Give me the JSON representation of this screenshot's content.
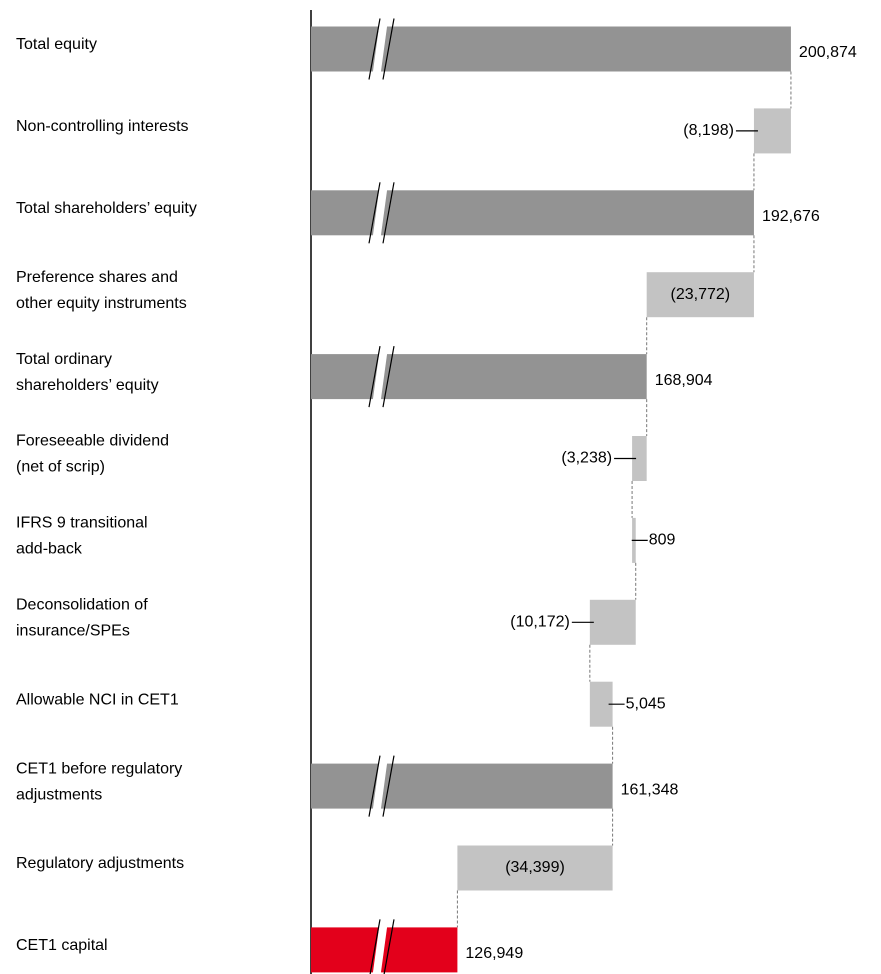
{
  "chart_data": {
    "type": "waterfall",
    "categories": [
      [
        "Total equity"
      ],
      [
        "Non-controlling interests"
      ],
      [
        "Total shareholders’ equity"
      ],
      [
        "Preference shares and",
        "other equity instruments"
      ],
      [
        "Total ordinary",
        "shareholders’ equity"
      ],
      [
        "Foreseeable dividend",
        "(net of scrip)"
      ],
      [
        "IFRS 9 transitional",
        "add-back"
      ],
      [
        "Deconsolidation of",
        "insurance/SPEs"
      ],
      [
        "Allowable NCI in CET1"
      ],
      [
        "CET1 before regulatory",
        "adjustments"
      ],
      [
        "Regulatory adjustments"
      ],
      [
        "CET1 capital"
      ]
    ],
    "values": [
      200874,
      -8198,
      192676,
      -23772,
      168904,
      -3238,
      809,
      -10172,
      5045,
      161348,
      -34399,
      126949
    ],
    "value_labels": [
      "200,874",
      "(8,198)",
      "192,676",
      "(23,772)",
      "168,904",
      "(3,238)",
      "809",
      "(10,172)",
      "5,045",
      "161,348",
      "(34,399)",
      "126,949"
    ],
    "is_total": [
      true,
      false,
      true,
      false,
      true,
      false,
      false,
      false,
      false,
      true,
      false,
      true
    ],
    "colors": [
      "#939393",
      "#c3c3c3",
      "#939393",
      "#c3c3c3",
      "#939393",
      "#c3c3c3",
      "#c3c3c3",
      "#c3c3c3",
      "#c3c3c3",
      "#939393",
      "#c3c3c3",
      "#e3001b"
    ],
    "xlim": [
      94500,
      201000
    ],
    "axis_break": true
  }
}
